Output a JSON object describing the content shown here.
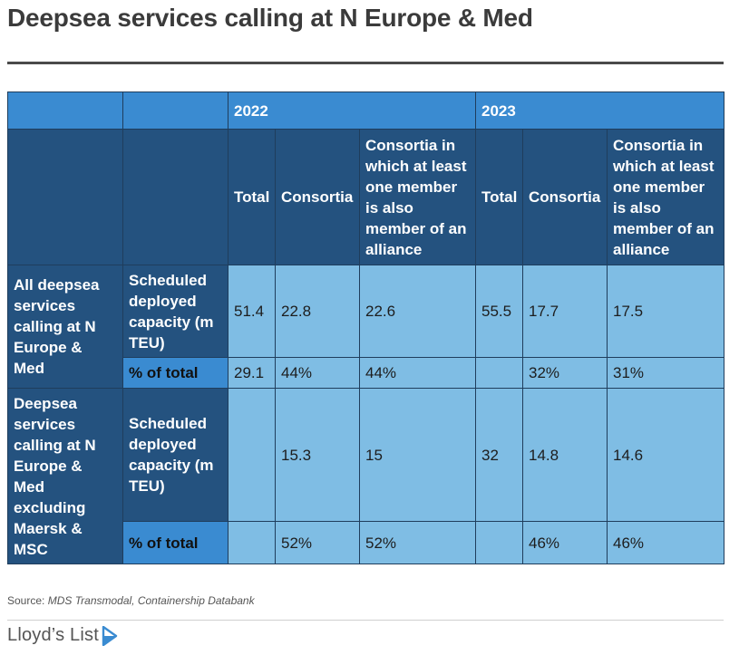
{
  "title": "Deepsea services calling at N Europe & Med",
  "table": {
    "years": [
      "2022",
      "2023"
    ],
    "columns": {
      "total": "Total",
      "consortia": "Consortia",
      "alliance": "Consortia in which at least one member is also member of an alliance"
    },
    "groups": [
      {
        "label": "All deepsea services calling at N Europe & Med",
        "rows": [
          {
            "metric": "Scheduled deployed capacity (m TEU)",
            "values": [
              "51.4",
              "22.8",
              "22.6",
              "55.5",
              "17.7",
              "17.5"
            ]
          },
          {
            "metric": "% of total",
            "values": [
              "29.1",
              "44%",
              "44%",
              "",
              "32%",
              "31%"
            ]
          }
        ]
      },
      {
        "label": "Deepsea services calling at N Europe & Med excluding Maersk & MSC",
        "rows": [
          {
            "metric": "Scheduled deployed capacity (m TEU)",
            "values": [
              "",
              "15.3",
              "15",
              "32",
              "14.8",
              "14.6"
            ]
          },
          {
            "metric": "% of total",
            "values": [
              "",
              "52%",
              "52%",
              "",
              "46%",
              "46%"
            ]
          }
        ]
      }
    ]
  },
  "source": {
    "prefix": "Source: ",
    "text": "MDS Transmodal, Containership Databank"
  },
  "brand": {
    "name": "Lloyd’s List",
    "icon": "play-arrow-icon",
    "accent": "#3a8bd1"
  }
}
